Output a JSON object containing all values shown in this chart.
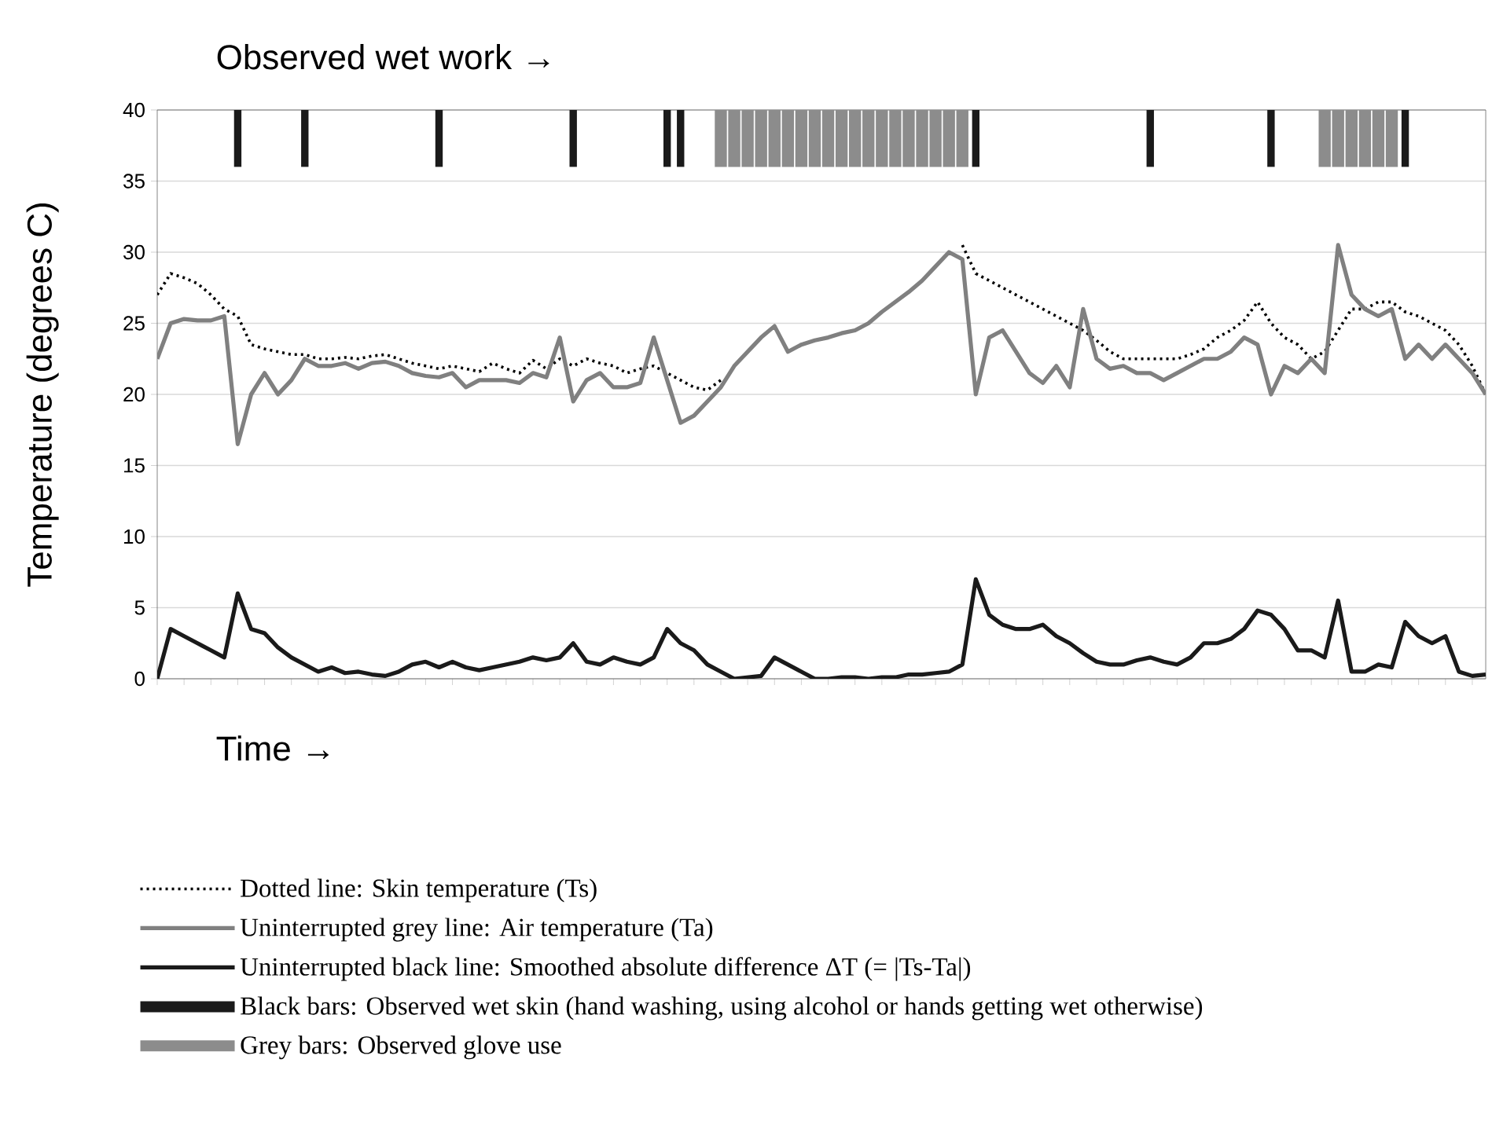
{
  "chart_data": {
    "type": "line",
    "title": "Observed wet work →",
    "xlabel": "Time →",
    "ylabel": "Temperature (degrees C)",
    "categories": [
      null,
      null,
      null,
      null,
      null,
      null,
      null,
      null,
      null,
      null,
      null,
      null,
      null,
      null,
      null,
      null,
      null,
      null,
      null,
      null,
      null,
      null,
      null,
      null,
      null,
      null,
      null,
      null,
      null,
      null,
      null,
      null,
      null,
      null,
      null,
      null,
      null,
      null,
      null,
      null,
      null,
      null,
      null,
      null,
      null,
      null,
      null,
      null,
      null,
      null,
      null,
      null,
      null,
      null,
      null,
      null,
      null,
      null,
      null,
      null,
      null,
      null,
      null,
      null,
      null,
      null,
      null,
      null,
      null,
      null,
      null,
      null,
      null,
      null,
      null,
      null,
      null,
      null,
      null,
      null,
      null,
      null,
      null,
      null,
      null,
      null,
      null,
      null,
      null,
      null,
      null,
      null,
      null,
      null,
      null,
      null,
      null,
      null,
      null,
      null
    ],
    "ylim": [
      0,
      40
    ],
    "yticks": [
      0,
      5,
      10,
      15,
      20,
      25,
      30,
      35,
      40
    ],
    "grid": "y",
    "legend": "bottom",
    "tick_labels": "y",
    "marker": "none",
    "series": [
      {
        "name": "Dotted line: Skin temperature (Ts)",
        "color": "#000000",
        "line_style": "dotted",
        "values": [
          27,
          28.5,
          28.2,
          27.8,
          27,
          26,
          25.5,
          23.5,
          23.2,
          23,
          22.8,
          22.8,
          22.5,
          22.5,
          22.6,
          22.5,
          22.7,
          22.8,
          22.5,
          22.2,
          22,
          21.8,
          22,
          21.8,
          21.6,
          22.2,
          21.8,
          21.5,
          22.4,
          21.8,
          22.5,
          22,
          22.5,
          22.2,
          22,
          21.5,
          21.8,
          22,
          21.5,
          21,
          20.5,
          20.3,
          21,
          null,
          null,
          null,
          null,
          null,
          null,
          null,
          null,
          null,
          null,
          null,
          null,
          null,
          null,
          null,
          null,
          null,
          30.5,
          28.5,
          28,
          27.5,
          27,
          26.5,
          26,
          25.5,
          25,
          24.5,
          23.8,
          23,
          22.5,
          22.5,
          22.5,
          22.5,
          22.5,
          22.8,
          23.2,
          24,
          24.5,
          25.2,
          26.5,
          25,
          24,
          23.5,
          22.5,
          23,
          24.5,
          26,
          26,
          26.5,
          26.5,
          25.8,
          25.5,
          25,
          24.5,
          23.5,
          22,
          20
        ]
      },
      {
        "name": "Uninterrupted grey line: Air temperature (Ta)",
        "color": "#808080",
        "line_style": "solid",
        "values": [
          22.5,
          25,
          25.3,
          25.2,
          25.2,
          25.5,
          16.5,
          20,
          21.5,
          20,
          21,
          22.5,
          22,
          22,
          22.2,
          21.8,
          22.2,
          22.3,
          22,
          21.5,
          21.3,
          21.2,
          21.5,
          20.5,
          21,
          21,
          21,
          20.8,
          21.5,
          21.2,
          24,
          19.5,
          21,
          21.5,
          20.5,
          20.5,
          20.8,
          24,
          21,
          18,
          18.5,
          19.5,
          20.5,
          22,
          23,
          24,
          24.8,
          23,
          23.5,
          23.8,
          24,
          24.3,
          24.5,
          25,
          25.8,
          26.5,
          27.2,
          28,
          29,
          30,
          29.5,
          20,
          24,
          24.5,
          23,
          21.5,
          20.8,
          22,
          20.5,
          26,
          22.5,
          21.8,
          22,
          21.5,
          21.5,
          21,
          21.5,
          22,
          22.5,
          22.5,
          23,
          24,
          23.5,
          20,
          22,
          21.5,
          22.5,
          21.5,
          30.5,
          27,
          26,
          25.5,
          26,
          22.5,
          23.5,
          22.5,
          23.5,
          22.5,
          21.5,
          20
        ]
      },
      {
        "name": "Uninterrupted black line: Smoothed absolute difference ΔT (= |Ts-Ta|)",
        "color": "#1a1a1a",
        "line_style": "solid",
        "values": [
          0,
          3.5,
          3,
          2.5,
          2,
          1.5,
          6,
          3.5,
          3.2,
          2.2,
          1.5,
          1,
          0.5,
          0.8,
          0.4,
          0.5,
          0.3,
          0.2,
          0.5,
          1,
          1.2,
          0.8,
          1.2,
          0.8,
          0.6,
          0.8,
          1,
          1.2,
          1.5,
          1.3,
          1.5,
          2.5,
          1.2,
          1,
          1.5,
          1.2,
          1,
          1.5,
          3.5,
          2.5,
          2,
          1,
          0.5,
          0,
          0.1,
          0.2,
          1.5,
          1,
          0.5,
          0,
          0,
          0.1,
          0.1,
          0,
          0.1,
          0.1,
          0.3,
          0.3,
          0.4,
          0.5,
          1,
          7,
          4.5,
          3.8,
          3.5,
          3.5,
          3.8,
          3,
          2.5,
          1.8,
          1.2,
          1,
          1,
          1.3,
          1.5,
          1.2,
          1,
          1.5,
          2.5,
          2.5,
          2.8,
          3.5,
          4.8,
          4.5,
          3.5,
          2,
          2,
          1.5,
          5.5,
          0.5,
          0.5,
          1,
          0.8,
          4,
          3,
          2.5,
          3,
          0.5,
          0.2,
          0.3
        ]
      },
      {
        "name": "Black bars: Observed wet skin (hand washing, using alcohol or hands getting wet otherwise)",
        "type": "bar",
        "color": "#1a1a1a",
        "values": [
          null,
          null,
          null,
          null,
          null,
          null,
          4,
          null,
          null,
          null,
          null,
          4,
          null,
          null,
          null,
          null,
          null,
          null,
          null,
          null,
          null,
          4,
          null,
          null,
          null,
          null,
          null,
          null,
          null,
          null,
          null,
          4,
          null,
          null,
          null,
          null,
          null,
          null,
          4,
          4,
          null,
          null,
          null,
          null,
          null,
          null,
          null,
          null,
          null,
          null,
          null,
          null,
          null,
          null,
          null,
          null,
          null,
          null,
          null,
          null,
          null,
          4,
          null,
          null,
          null,
          null,
          null,
          null,
          null,
          null,
          null,
          null,
          null,
          null,
          4,
          null,
          null,
          null,
          null,
          null,
          null,
          null,
          null,
          4,
          null,
          null,
          null,
          null,
          null,
          null,
          null,
          null,
          null,
          4,
          null,
          null,
          null,
          null,
          null,
          null
        ],
        "base": [
          null,
          null,
          null,
          null,
          null,
          null,
          36,
          null,
          null,
          null,
          null,
          36,
          null,
          null,
          null,
          null,
          null,
          null,
          null,
          null,
          null,
          36,
          null,
          null,
          null,
          null,
          null,
          null,
          null,
          null,
          null,
          36,
          null,
          null,
          null,
          null,
          null,
          null,
          36,
          36,
          null,
          null,
          null,
          null,
          null,
          null,
          null,
          null,
          null,
          null,
          null,
          null,
          null,
          null,
          null,
          null,
          null,
          null,
          null,
          null,
          null,
          36,
          null,
          null,
          null,
          null,
          null,
          null,
          null,
          null,
          null,
          null,
          null,
          null,
          36,
          null,
          null,
          null,
          null,
          null,
          null,
          null,
          null,
          36,
          null,
          null,
          null,
          null,
          null,
          null,
          null,
          null,
          null,
          36,
          null,
          null,
          null,
          null,
          null,
          null
        ]
      },
      {
        "name": "Grey bars: Observed glove use",
        "type": "bar",
        "color": "#8c8c8c",
        "values": [
          null,
          null,
          null,
          null,
          null,
          null,
          null,
          null,
          null,
          null,
          null,
          null,
          null,
          null,
          null,
          null,
          null,
          null,
          null,
          null,
          null,
          null,
          null,
          null,
          null,
          null,
          null,
          null,
          null,
          null,
          null,
          null,
          null,
          null,
          null,
          null,
          null,
          null,
          null,
          null,
          null,
          null,
          4,
          4,
          4,
          4,
          4,
          4,
          4,
          4,
          4,
          4,
          4,
          4,
          4,
          4,
          4,
          4,
          4,
          4,
          4,
          null,
          null,
          null,
          null,
          null,
          null,
          null,
          null,
          null,
          null,
          null,
          null,
          null,
          null,
          null,
          null,
          null,
          null,
          null,
          null,
          null,
          null,
          null,
          null,
          null,
          null,
          4,
          4,
          4,
          4,
          4,
          4,
          null,
          null,
          null,
          null,
          null,
          null,
          null
        ],
        "base": [
          null,
          null,
          null,
          null,
          null,
          null,
          null,
          null,
          null,
          null,
          null,
          null,
          null,
          null,
          null,
          null,
          null,
          null,
          null,
          null,
          null,
          null,
          null,
          null,
          null,
          null,
          null,
          null,
          null,
          null,
          null,
          null,
          null,
          null,
          null,
          null,
          null,
          null,
          null,
          null,
          null,
          null,
          36,
          36,
          36,
          36,
          36,
          36,
          36,
          36,
          36,
          36,
          36,
          36,
          36,
          36,
          36,
          36,
          36,
          36,
          36,
          null,
          null,
          null,
          null,
          null,
          null,
          null,
          null,
          null,
          null,
          null,
          null,
          null,
          null,
          null,
          null,
          null,
          null,
          null,
          null,
          null,
          null,
          null,
          null,
          null,
          null,
          36,
          36,
          36,
          36,
          36,
          36,
          null,
          null,
          null,
          null,
          null,
          null,
          null
        ]
      }
    ]
  }
}
